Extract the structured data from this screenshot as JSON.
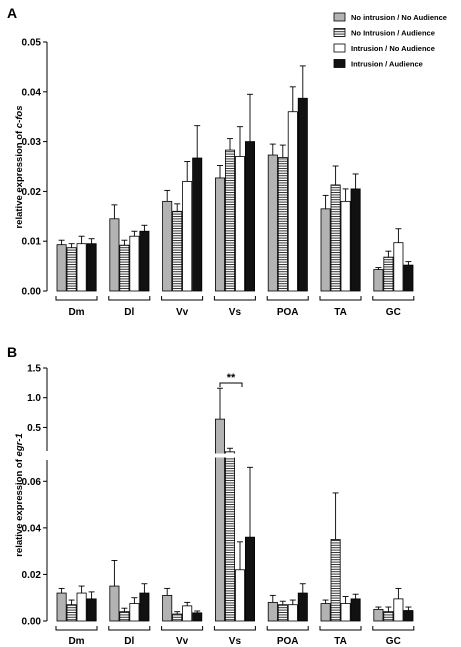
{
  "legend": [
    {
      "name": "No intrusion / No Audience",
      "fill": "#b3b3b3",
      "pattern": "solid"
    },
    {
      "name": "No Intrusion / Audience",
      "fill": "#ffffff",
      "pattern": "hstripes"
    },
    {
      "name": "Intrusion / No Audience",
      "fill": "#ffffff",
      "pattern": "solid"
    },
    {
      "name": "Intrusion / Audience",
      "fill": "#111111",
      "pattern": "solid"
    }
  ],
  "chart_data": [
    {
      "type": "bar",
      "panel": "A",
      "ylabel_prefix": "relative expression of ",
      "ylabel_gene": "c-fos",
      "categories": [
        "Dm",
        "Dl",
        "Vv",
        "Vs",
        "POA",
        "TA",
        "GC"
      ],
      "ylim": [
        0,
        0.05
      ],
      "yticks": [
        "0.00",
        "0.01",
        "0.02",
        "0.03",
        "0.04",
        "0.05"
      ],
      "series": [
        {
          "name": "No intrusion / No Audience",
          "values": [
            0.0093,
            0.0145,
            0.018,
            0.0227,
            0.0273,
            0.0165,
            0.0043
          ],
          "errors": [
            0.0009,
            0.0028,
            0.0022,
            0.0025,
            0.0022,
            0.0027,
            0.0004
          ]
        },
        {
          "name": "No Intrusion / Audience",
          "values": [
            0.0087,
            0.0092,
            0.016,
            0.0283,
            0.0268,
            0.0213,
            0.0068
          ],
          "errors": [
            0.0008,
            0.001,
            0.0015,
            0.0023,
            0.0025,
            0.0038,
            0.0012
          ]
        },
        {
          "name": "Intrusion / No Audience",
          "values": [
            0.0095,
            0.011,
            0.022,
            0.027,
            0.036,
            0.018,
            0.0097
          ],
          "errors": [
            0.0015,
            0.001,
            0.004,
            0.006,
            0.005,
            0.0025,
            0.0028
          ]
        },
        {
          "name": "Intrusion / Audience",
          "values": [
            0.0095,
            0.012,
            0.0267,
            0.03,
            0.0387,
            0.0205,
            0.0052
          ],
          "errors": [
            0.001,
            0.0012,
            0.0065,
            0.0095,
            0.0065,
            0.003,
            0.0007
          ]
        }
      ]
    },
    {
      "type": "bar",
      "panel": "B",
      "ylabel_prefix": "relative expression of ",
      "ylabel_gene": "egr-1",
      "categories": [
        "Dm",
        "Dl",
        "Vv",
        "Vs",
        "POA",
        "TA",
        "GC"
      ],
      "y_axis_break": {
        "lower": [
          0,
          0.07
        ],
        "upper": [
          0.07,
          1.5
        ]
      },
      "yticks_lower": [
        "0.00",
        "0.02",
        "0.04",
        "0.06"
      ],
      "yticks_upper": [
        "0.5",
        "1.0",
        "1.5"
      ],
      "series": [
        {
          "name": "No intrusion / No Audience",
          "values": [
            0.012,
            0.015,
            0.011,
            0.64,
            0.008,
            0.0075,
            0.005
          ],
          "errors": [
            0.002,
            0.011,
            0.003,
            0.52,
            0.003,
            0.0015,
            0.001
          ]
        },
        {
          "name": "No Intrusion / Audience",
          "values": [
            0.007,
            0.004,
            0.003,
            0.09,
            0.007,
            0.035,
            0.004
          ],
          "errors": [
            0.002,
            0.0015,
            0.001,
            0.06,
            0.0015,
            0.02,
            0.002
          ]
        },
        {
          "name": "Intrusion / No Audience",
          "values": [
            0.012,
            0.0075,
            0.0065,
            0.022,
            0.007,
            0.0075,
            0.0095
          ],
          "errors": [
            0.003,
            0.0025,
            0.0015,
            0.012,
            0.002,
            0.003,
            0.0045
          ]
        },
        {
          "name": "Intrusion / Audience",
          "values": [
            0.0095,
            0.012,
            0.0035,
            0.036,
            0.012,
            0.0095,
            0.0045
          ],
          "errors": [
            0.003,
            0.004,
            0.0008,
            0.03,
            0.004,
            0.002,
            0.0015
          ]
        }
      ],
      "annotation": {
        "label": "**",
        "category": "Vs",
        "from_series": 0,
        "to_series": 1
      }
    }
  ]
}
